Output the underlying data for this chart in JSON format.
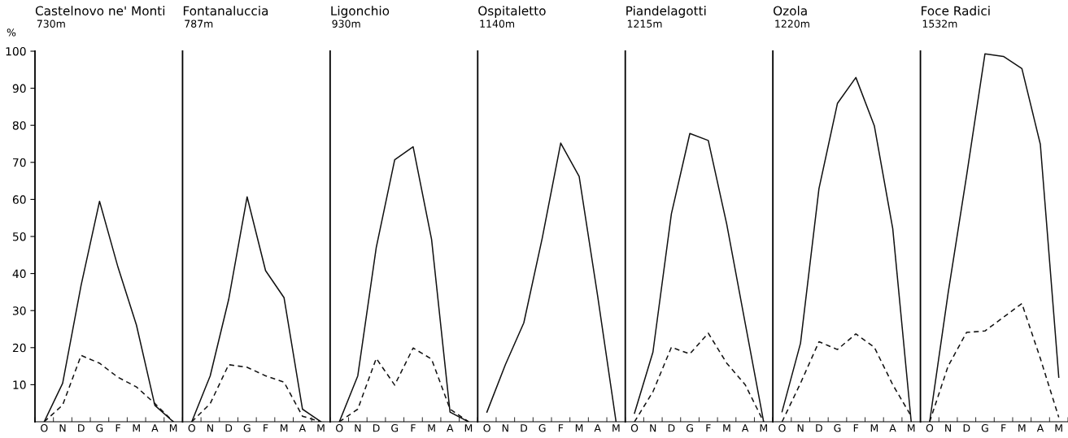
{
  "chart_data": [
    {
      "type": "line",
      "title": "Castelnovo ne' Monti",
      "subtitle": "730m",
      "ylabel": "%",
      "categories": [
        "O",
        "N",
        "D",
        "G",
        "F",
        "M",
        "A",
        "M"
      ],
      "ylim": [
        0,
        100
      ],
      "yticks": [
        10,
        20,
        30,
        40,
        50,
        60,
        70,
        80,
        90,
        100
      ],
      "grid": false,
      "legend": false,
      "series": [
        {
          "color": "#111111",
          "line_style": "solid",
          "values": [
            0,
            10.4,
            36.8,
            59.5,
            41.7,
            26.1,
            4.4,
            0
          ]
        },
        {
          "color": "#111111",
          "line_style": "dashed",
          "values": [
            0,
            4.5,
            17.9,
            15.8,
            12,
            9.4,
            4.9,
            0
          ]
        }
      ]
    },
    {
      "type": "line",
      "title": "Fontanaluccia",
      "subtitle": "787m",
      "categories": [
        "O",
        "N",
        "D",
        "G",
        "F",
        "M",
        "A",
        "M"
      ],
      "ylim": [
        0,
        100
      ],
      "tick_labels": "x",
      "grid": false,
      "legend": false,
      "series": [
        {
          "color": "#111111",
          "line_style": "solid",
          "values": [
            0,
            12.4,
            33,
            60.7,
            40.8,
            33.5,
            3.4,
            0
          ]
        },
        {
          "color": "#111111",
          "line_style": "dashed",
          "values": [
            0,
            4.9,
            15.4,
            14.7,
            12.4,
            10.7,
            1.5,
            0
          ]
        }
      ]
    },
    {
      "type": "line",
      "title": "Ligonchio",
      "subtitle": "930m",
      "categories": [
        "O",
        "N",
        "D",
        "G",
        "F",
        "M",
        "A",
        "M"
      ],
      "ylim": [
        0,
        100
      ],
      "tick_labels": "x",
      "grid": false,
      "legend": false,
      "series": [
        {
          "color": "#111111",
          "line_style": "solid",
          "values": [
            0,
            12.4,
            47,
            70.7,
            74.2,
            49.2,
            2.6,
            0
          ]
        },
        {
          "color": "#111111",
          "line_style": "dashed",
          "values": [
            0,
            3.4,
            17.1,
            9.9,
            19.9,
            16.9,
            3.4,
            0
          ]
        }
      ]
    },
    {
      "type": "line",
      "title": "Ospitaletto",
      "subtitle": "1140m",
      "categories": [
        "O",
        "N",
        "D",
        "G",
        "F",
        "M",
        "A",
        "M"
      ],
      "ylim": [
        0,
        100
      ],
      "tick_labels": "x",
      "grid": false,
      "legend": false,
      "series": [
        {
          "color": "#111111",
          "line_style": "solid",
          "values": [
            2.6,
            15.4,
            26.7,
            49.6,
            75.2,
            66.2,
            34,
            0
          ]
        }
      ]
    },
    {
      "type": "line",
      "title": "Piandelagotti",
      "subtitle": "1215m",
      "categories": [
        "O",
        "N",
        "D",
        "G",
        "F",
        "M",
        "A",
        "M"
      ],
      "ylim": [
        0,
        100
      ],
      "tick_labels": "x",
      "grid": false,
      "legend": false,
      "series": [
        {
          "color": "#111111",
          "line_style": "solid",
          "values": [
            2.3,
            18.8,
            56.1,
            77.8,
            75.9,
            53.3,
            26.6,
            0
          ]
        },
        {
          "color": "#111111",
          "line_style": "dashed",
          "values": [
            0,
            8.1,
            20.1,
            18.3,
            23.9,
            15.8,
            10,
            0
          ]
        }
      ]
    },
    {
      "type": "line",
      "title": "Ozola",
      "subtitle": "1220m",
      "categories": [
        "O",
        "N",
        "D",
        "G",
        "F",
        "M",
        "A",
        "M"
      ],
      "ylim": [
        0,
        100
      ],
      "tick_labels": "x",
      "grid": false,
      "legend": false,
      "series": [
        {
          "color": "#111111",
          "line_style": "solid",
          "values": [
            2.7,
            21.2,
            62.9,
            85.9,
            92.9,
            79.9,
            52.1,
            0
          ]
        },
        {
          "color": "#111111",
          "line_style": "dashed",
          "values": [
            0,
            10.4,
            21.6,
            19.5,
            23.7,
            20.1,
            10,
            1.5
          ]
        }
      ]
    },
    {
      "type": "line",
      "title": "Foce Radici",
      "subtitle": "1532m",
      "categories": [
        "O",
        "N",
        "D",
        "G",
        "F",
        "M",
        "A",
        "M"
      ],
      "ylim": [
        0,
        100
      ],
      "tick_labels": "x",
      "grid": false,
      "legend": false,
      "series": [
        {
          "color": "#111111",
          "line_style": "solid",
          "values": [
            0,
            34.7,
            66.3,
            99.3,
            98.6,
            95.3,
            74.9,
            12
          ]
        },
        {
          "color": "#111111",
          "line_style": "dashed",
          "values": [
            0,
            15,
            24.1,
            24.5,
            28.2,
            31.9,
            17.1,
            1.2
          ]
        }
      ]
    }
  ]
}
